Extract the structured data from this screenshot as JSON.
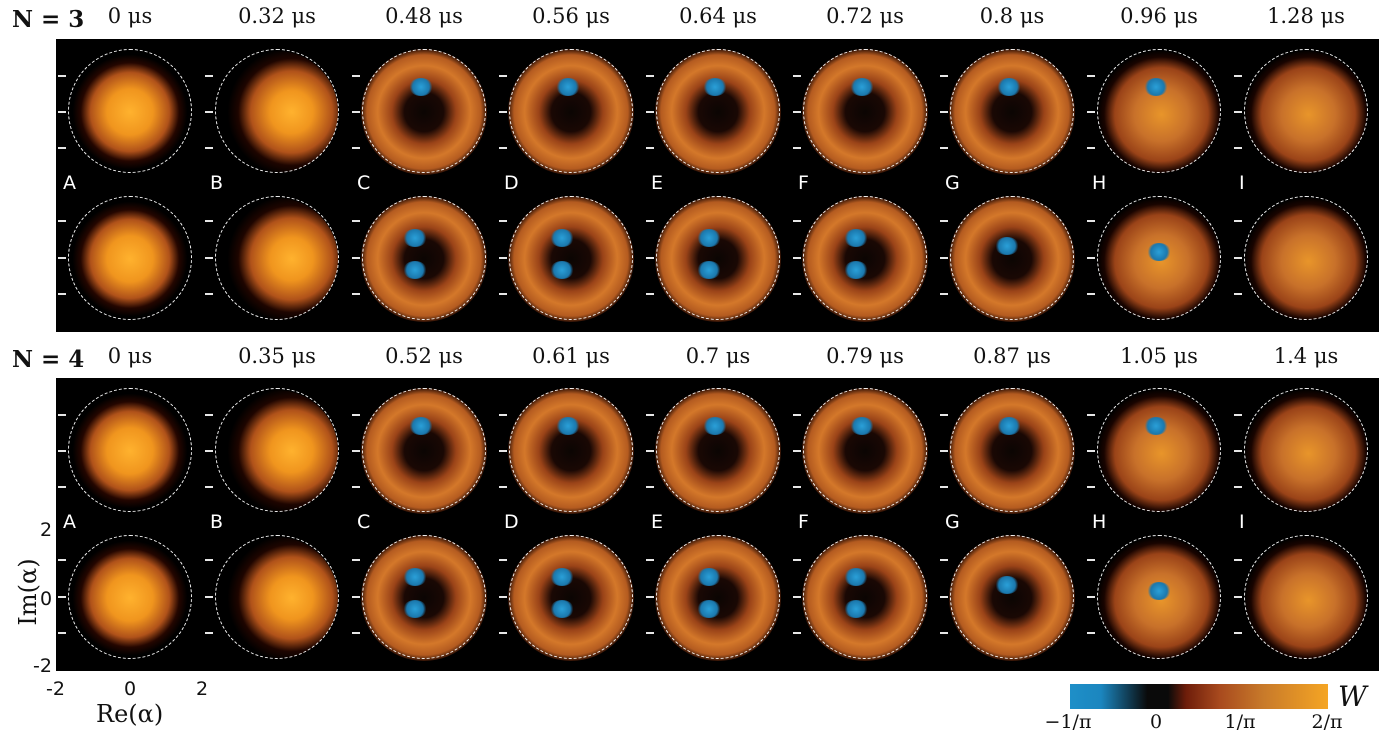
{
  "rows": [
    {
      "n_label": "N = 3",
      "times": [
        "0 μs",
        "0.32 μs",
        "0.48 μs",
        "0.56 μs",
        "0.64 μs",
        "0.72 μs",
        "0.8 μs",
        "0.96 μs",
        "1.28 μs"
      ],
      "letters": [
        "A",
        "B",
        "C",
        "D",
        "E",
        "F",
        "G",
        "H",
        "I"
      ]
    },
    {
      "n_label": "N = 4",
      "times": [
        "0 μs",
        "0.35 μs",
        "0.52 μs",
        "0.61 μs",
        "0.7 μs",
        "0.79 μs",
        "0.87 μs",
        "1.05 μs",
        "1.4 μs"
      ],
      "letters": [
        "A",
        "B",
        "C",
        "D",
        "E",
        "F",
        "G",
        "H",
        "I"
      ]
    }
  ],
  "axes": {
    "ylabel": "Im(α)",
    "xlabel": "Re(α)",
    "yticks": [
      "2",
      "0",
      "-2"
    ],
    "xticks": [
      "-2",
      "0",
      "2"
    ]
  },
  "colorbar": {
    "label": "W",
    "ticks": [
      "−1/π",
      "0",
      "1/π",
      "2/π"
    ],
    "colors": [
      "#1e8fc8",
      "#0a0a0a",
      "#a84a1e",
      "#f5a524"
    ]
  }
}
